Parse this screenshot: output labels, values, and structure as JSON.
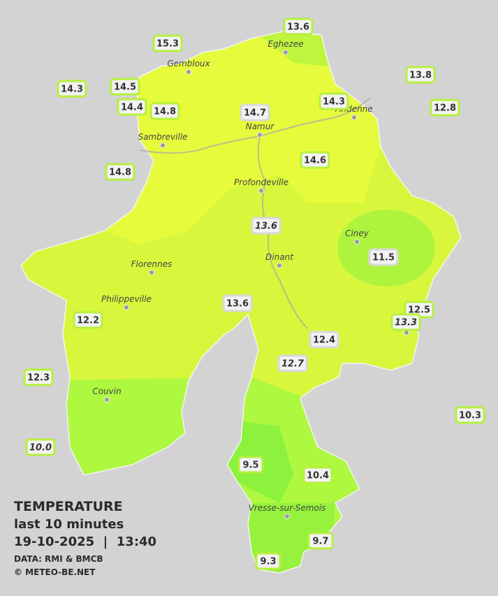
{
  "legend": {
    "title": "TEMPERATURE",
    "subtitle": "last 10 minutes",
    "timestamp": "19-10-2025  |  13:40",
    "source": "DATA: RMI & BMCB",
    "credit": "© METEO-BE.NET"
  },
  "cities": [
    "Eghezee",
    "Gembloux",
    "Andenne",
    "Namur",
    "Sambreville",
    "Profondeville",
    "Ciney",
    "Dinant",
    "Florennes",
    "Philippeville",
    "Couvin",
    "Vresse-sur-Semois"
  ],
  "stations": [
    {
      "value": "13.6",
      "italic": false
    },
    {
      "value": "15.3",
      "italic": false
    },
    {
      "value": "13.8",
      "italic": false
    },
    {
      "value": "14.3",
      "italic": false
    },
    {
      "value": "14.5",
      "italic": false
    },
    {
      "value": "14.4",
      "italic": false
    },
    {
      "value": "14.8",
      "italic": false
    },
    {
      "value": "14.7",
      "italic": false
    },
    {
      "value": "14.3",
      "italic": false
    },
    {
      "value": "12.8",
      "italic": false
    },
    {
      "value": "14.6",
      "italic": false
    },
    {
      "value": "14.8",
      "italic": false
    },
    {
      "value": "13.6",
      "italic": true
    },
    {
      "value": "11.5",
      "italic": false
    },
    {
      "value": "13.6",
      "italic": false
    },
    {
      "value": "12.5",
      "italic": false
    },
    {
      "value": "13.3",
      "italic": true
    },
    {
      "value": "12.2",
      "italic": false
    },
    {
      "value": "12.4",
      "italic": false
    },
    {
      "value": "12.7",
      "italic": true
    },
    {
      "value": "12.3",
      "italic": false
    },
    {
      "value": "10.3",
      "italic": false
    },
    {
      "value": "10.0",
      "italic": true
    },
    {
      "value": "9.5",
      "italic": false
    },
    {
      "value": "10.4",
      "italic": false
    },
    {
      "value": "9.7",
      "italic": false
    },
    {
      "value": "9.3",
      "italic": false
    }
  ]
}
